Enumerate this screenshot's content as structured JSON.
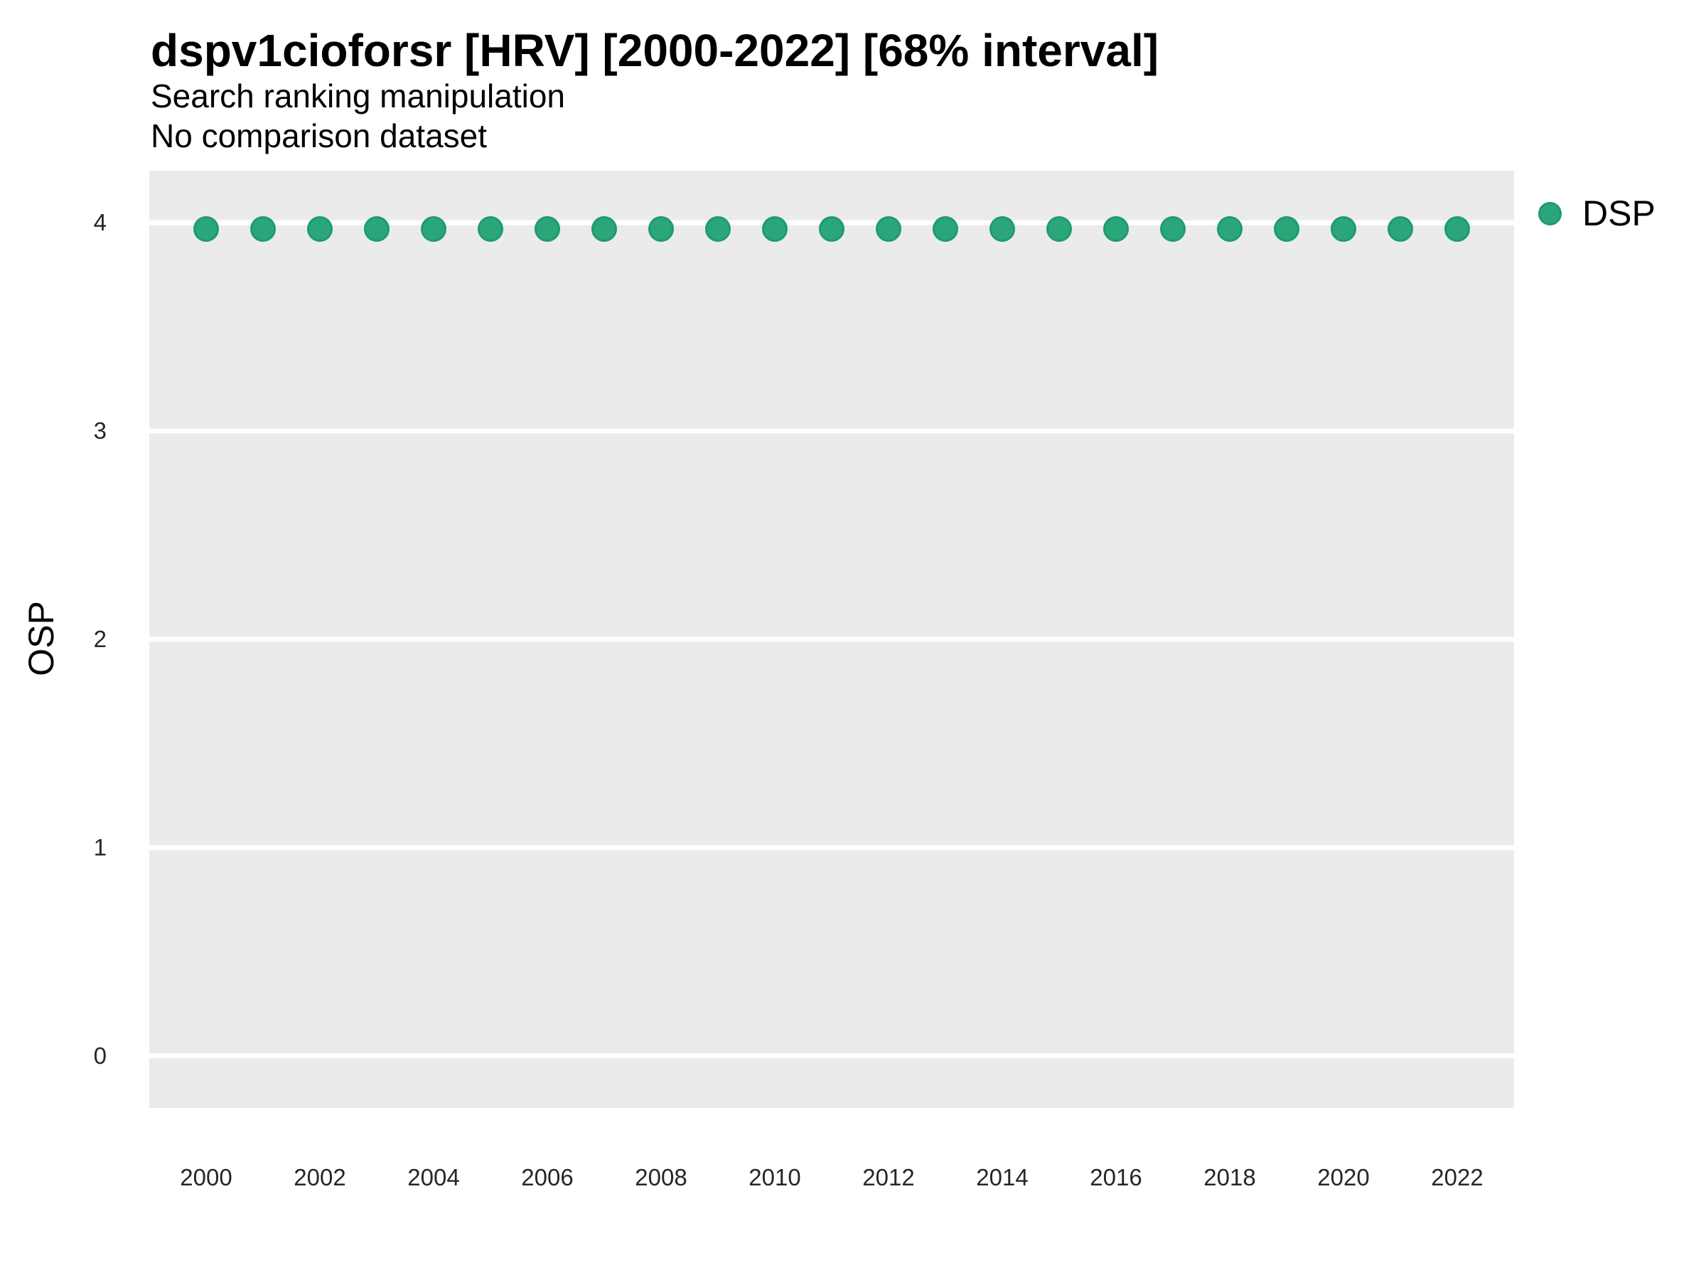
{
  "header": {
    "title": "dspv1cioforsr [HRV] [2000-2022] [68% interval]",
    "subtitle": "Search ranking manipulation",
    "note": "No comparison dataset"
  },
  "axes": {
    "y_label": "OSP",
    "y_ticks": [
      4,
      3,
      2,
      1,
      0
    ],
    "x_ticks": [
      2000,
      2002,
      2004,
      2006,
      2008,
      2010,
      2012,
      2014,
      2016,
      2018,
      2020,
      2022
    ]
  },
  "legend": {
    "position": "right-top",
    "items": [
      {
        "label": "DSP",
        "marker": "circle",
        "fill": "#2BA67B",
        "stroke": "#1E9C6C"
      }
    ]
  },
  "colors": {
    "panel_background": "#EBEBEB",
    "gridline": "#FFFFFF",
    "point_fill": "#2BA67B",
    "point_stroke": "#1E9C6C",
    "title_text": "#000000",
    "tick_text": "#262626"
  },
  "chart_data": {
    "type": "scatter",
    "title": "dspv1cioforsr [HRV] [2000-2022] [68% interval]",
    "subtitle": "Search ranking manipulation",
    "annotation": "No comparison dataset",
    "xlabel": "",
    "ylabel": "OSP",
    "xlim": [
      1999,
      2023
    ],
    "ylim": [
      -0.25,
      4.25
    ],
    "grid": "horizontal-major-only",
    "legend_position": "right-top",
    "series": [
      {
        "name": "DSP",
        "color": "#2BA67B",
        "x": [
          2000,
          2001,
          2002,
          2003,
          2004,
          2005,
          2006,
          2007,
          2008,
          2009,
          2010,
          2011,
          2012,
          2013,
          2014,
          2015,
          2016,
          2017,
          2018,
          2019,
          2020,
          2021,
          2022
        ],
        "y": [
          3.97,
          3.97,
          3.97,
          3.97,
          3.97,
          3.97,
          3.97,
          3.97,
          3.97,
          3.97,
          3.97,
          3.97,
          3.97,
          3.97,
          3.97,
          3.97,
          3.97,
          3.97,
          3.97,
          3.97,
          3.97,
          3.97,
          3.97
        ]
      }
    ]
  }
}
